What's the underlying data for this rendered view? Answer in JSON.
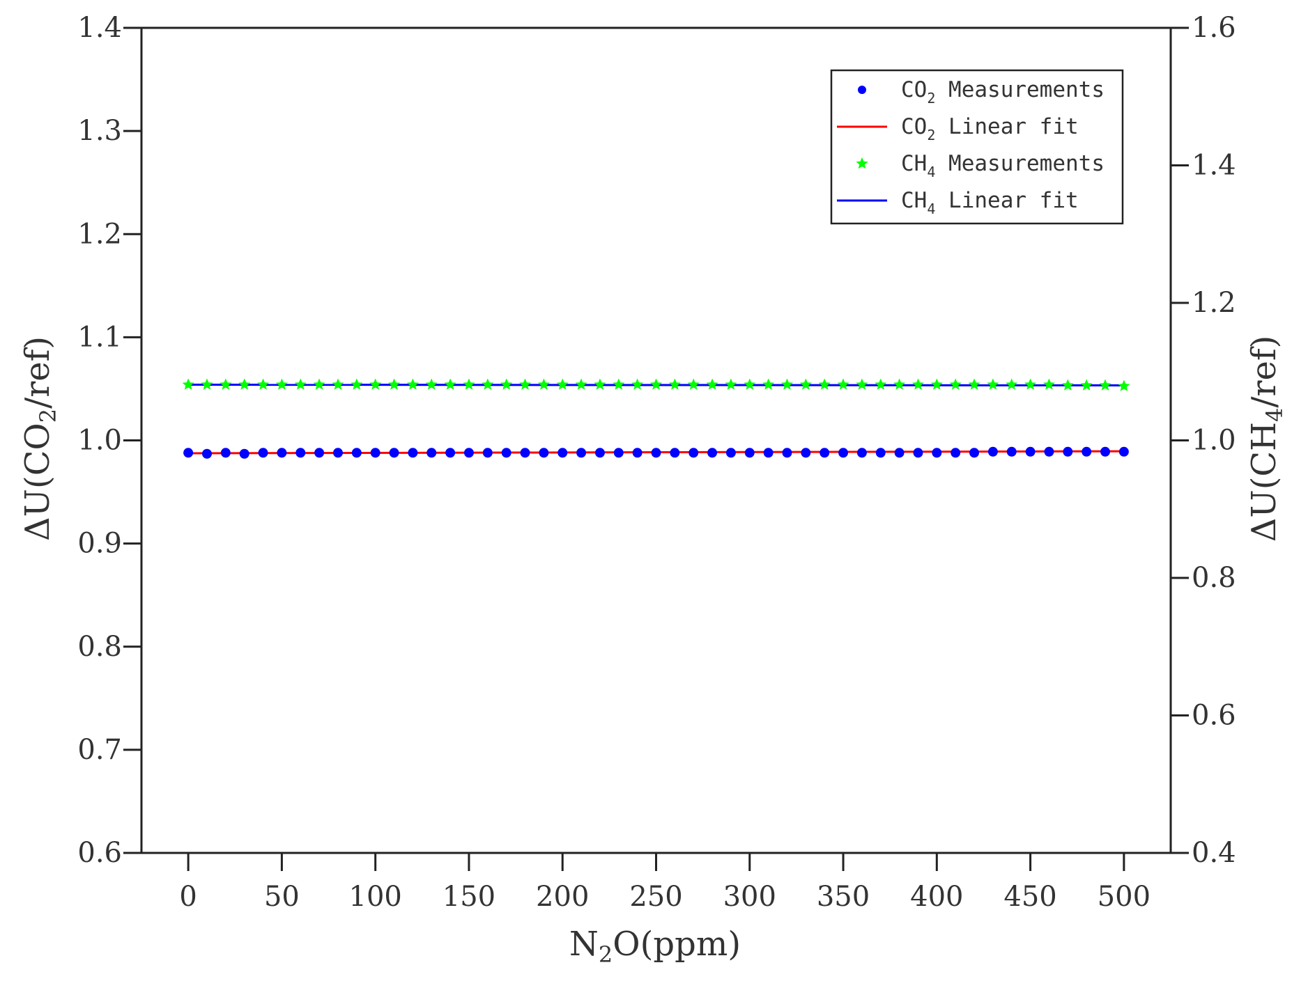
{
  "chart_data": {
    "type": "scatter",
    "title": "",
    "xlabel": {
      "main": "N",
      "sub": "2",
      "tail": "O(ppm)"
    },
    "ylabel_left": {
      "prefix": "ΔU(CO",
      "sub": "2",
      "tail": "/ref)"
    },
    "ylabel_right": {
      "prefix": "ΔU(CH",
      "sub": "4",
      "tail": "/ref)"
    },
    "xlim": [
      -25,
      525
    ],
    "ylim_left": [
      0.6,
      1.4
    ],
    "ylim_right": [
      0.4,
      1.6
    ],
    "x_ticks": [
      0,
      50,
      100,
      150,
      200,
      250,
      300,
      350,
      400,
      450,
      500
    ],
    "x_tick_labels": [
      "0",
      "50",
      "100",
      "150",
      "200",
      "250",
      "300",
      "350",
      "400",
      "450",
      "500"
    ],
    "y_left_ticks": [
      0.6,
      0.7,
      0.8,
      0.9,
      1.0,
      1.1,
      1.2,
      1.3,
      1.4
    ],
    "y_left_tick_labels": [
      "0.6",
      "0.7",
      "0.8",
      "0.9",
      "1.0",
      "1.1",
      "1.2",
      "1.3",
      "1.4"
    ],
    "y_right_ticks": [
      0.4,
      0.6,
      0.8,
      1.0,
      1.2,
      1.4,
      1.6
    ],
    "y_right_tick_labels": [
      "0.4",
      "0.6",
      "0.8",
      "1.0",
      "1.2",
      "1.4",
      "1.6"
    ],
    "legend_position": "top-right",
    "grid": false,
    "series": [
      {
        "name": "Measurements",
        "legend_prefix": "CO",
        "legend_sub": "2",
        "legend_suffix": " Measurements",
        "kind": "scatter",
        "marker": "circle",
        "axis": "left",
        "color": "#0000ff",
        "x": [
          0,
          10,
          20,
          30,
          40,
          50,
          60,
          70,
          80,
          90,
          100,
          110,
          120,
          130,
          140,
          150,
          160,
          170,
          180,
          190,
          200,
          210,
          220,
          230,
          240,
          250,
          260,
          270,
          280,
          290,
          300,
          310,
          320,
          330,
          340,
          350,
          360,
          370,
          380,
          390,
          400,
          410,
          420,
          430,
          440,
          450,
          460,
          470,
          480,
          490,
          500
        ],
        "y": [
          0.988,
          0.987,
          0.988,
          0.987,
          0.988,
          0.988,
          0.988,
          0.988,
          0.988,
          0.988,
          0.988,
          0.988,
          0.988,
          0.988,
          0.988,
          0.988,
          0.988,
          0.988,
          0.988,
          0.988,
          0.988,
          0.988,
          0.988,
          0.988,
          0.988,
          0.988,
          0.988,
          0.988,
          0.988,
          0.988,
          0.988,
          0.988,
          0.988,
          0.988,
          0.988,
          0.988,
          0.988,
          0.988,
          0.988,
          0.988,
          0.988,
          0.988,
          0.988,
          0.989,
          0.989,
          0.989,
          0.989,
          0.989,
          0.989,
          0.989,
          0.989
        ]
      },
      {
        "name": "Linear fit",
        "legend_prefix": "CO",
        "legend_sub": "2",
        "legend_suffix": " Linear fit",
        "kind": "line",
        "axis": "left",
        "color": "#ff0000",
        "x": [
          0,
          500
        ],
        "y": [
          0.9875,
          0.9895
        ]
      },
      {
        "name": "Measurements",
        "legend_prefix": "CH",
        "legend_sub": "4",
        "legend_suffix": " Measurements",
        "kind": "scatter",
        "marker": "star",
        "axis": "right",
        "color": "#00ff00",
        "x": [
          0,
          10,
          20,
          30,
          40,
          50,
          60,
          70,
          80,
          90,
          100,
          110,
          120,
          130,
          140,
          150,
          160,
          170,
          180,
          190,
          200,
          210,
          220,
          230,
          240,
          250,
          260,
          270,
          280,
          290,
          300,
          310,
          320,
          330,
          340,
          350,
          360,
          370,
          380,
          390,
          400,
          410,
          420,
          430,
          440,
          450,
          460,
          470,
          480,
          490,
          500
        ],
        "y": [
          1.081,
          1.081,
          1.081,
          1.081,
          1.081,
          1.081,
          1.081,
          1.081,
          1.081,
          1.081,
          1.081,
          1.081,
          1.081,
          1.081,
          1.081,
          1.081,
          1.081,
          1.081,
          1.081,
          1.081,
          1.081,
          1.081,
          1.081,
          1.081,
          1.081,
          1.081,
          1.081,
          1.081,
          1.081,
          1.081,
          1.081,
          1.081,
          1.081,
          1.081,
          1.081,
          1.081,
          1.081,
          1.081,
          1.081,
          1.081,
          1.081,
          1.081,
          1.081,
          1.081,
          1.081,
          1.081,
          1.081,
          1.08,
          1.08,
          1.08,
          1.079
        ]
      },
      {
        "name": "Linear fit",
        "legend_prefix": "CH",
        "legend_sub": "4",
        "legend_suffix": " Linear fit",
        "kind": "line",
        "axis": "right",
        "color": "#0000ff",
        "x": [
          0,
          500
        ],
        "y": [
          1.081,
          1.08
        ]
      }
    ]
  }
}
